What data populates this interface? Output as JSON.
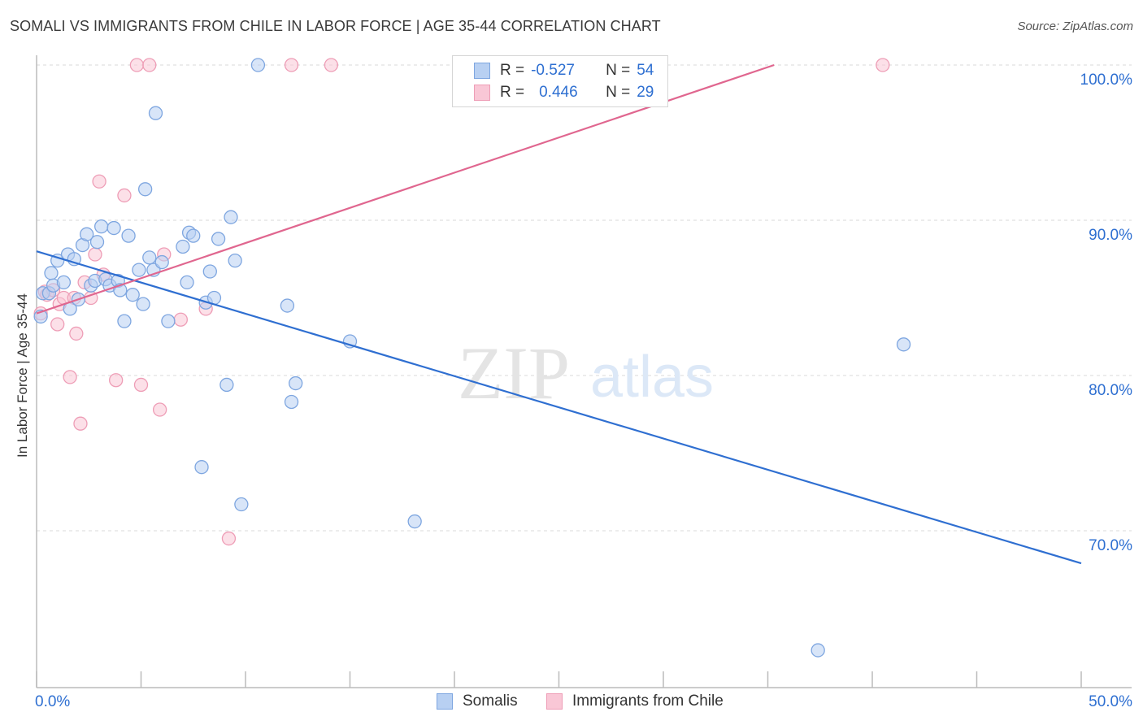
{
  "header": {
    "title": "SOMALI VS IMMIGRANTS FROM CHILE IN LABOR FORCE | AGE 35-44 CORRELATION CHART",
    "source": "Source: ZipAtlas.com"
  },
  "watermark": {
    "zip": "ZIP",
    "atlas": "atlas"
  },
  "legend": {
    "somali": {
      "r_label": "R =",
      "r_value": "-0.527",
      "n_label": "N =",
      "n_value": "54"
    },
    "chile": {
      "r_label": "R =",
      "r_value": "0.446",
      "n_label": "N =",
      "n_value": "29"
    }
  },
  "colors": {
    "somali_fill": "#b8d0f2",
    "somali_stroke": "#7ea6e0",
    "somali_line": "#2f6fd1",
    "chile_fill": "#f9c7d6",
    "chile_stroke": "#ee9db6",
    "chile_line": "#e0668f",
    "axis_text": "#2e6fd1",
    "grid": "#d9d9d9"
  },
  "chart_data": {
    "type": "scatter",
    "title": "SOMALI VS IMMIGRANTS FROM CHILE IN LABOR FORCE | AGE 35-44 CORRELATION CHART",
    "xlabel": "",
    "ylabel": "In Labor Force | Age 35-44",
    "xlim": [
      0,
      50
    ],
    "ylim": [
      61,
      101
    ],
    "x_tick_labels": [
      "0.0%",
      "50.0%"
    ],
    "y_ticks": [
      70,
      80,
      90,
      100
    ],
    "y_tick_labels": [
      "70.0%",
      "80.0%",
      "90.0%",
      "100.0%"
    ],
    "series": [
      {
        "name": "Somalis",
        "r": -0.527,
        "n": 54,
        "trend": {
          "x": [
            0,
            50
          ],
          "y": [
            88.0,
            67.9
          ]
        },
        "points": [
          {
            "x": 0.2,
            "y": 83.8
          },
          {
            "x": 0.3,
            "y": 85.3
          },
          {
            "x": 0.6,
            "y": 85.3
          },
          {
            "x": 0.7,
            "y": 86.6
          },
          {
            "x": 0.8,
            "y": 85.8
          },
          {
            "x": 1.0,
            "y": 87.4
          },
          {
            "x": 1.3,
            "y": 86.0
          },
          {
            "x": 1.5,
            "y": 87.8
          },
          {
            "x": 1.6,
            "y": 84.3
          },
          {
            "x": 1.8,
            "y": 87.5
          },
          {
            "x": 2.0,
            "y": 84.9
          },
          {
            "x": 2.2,
            "y": 88.4
          },
          {
            "x": 2.4,
            "y": 89.1
          },
          {
            "x": 2.6,
            "y": 85.8
          },
          {
            "x": 2.8,
            "y": 86.1
          },
          {
            "x": 2.9,
            "y": 88.6
          },
          {
            "x": 3.1,
            "y": 89.6
          },
          {
            "x": 3.3,
            "y": 86.2
          },
          {
            "x": 3.5,
            "y": 85.8
          },
          {
            "x": 3.7,
            "y": 89.5
          },
          {
            "x": 3.9,
            "y": 86.1
          },
          {
            "x": 4.0,
            "y": 85.5
          },
          {
            "x": 4.2,
            "y": 83.5
          },
          {
            "x": 4.4,
            "y": 89.0
          },
          {
            "x": 4.6,
            "y": 85.2
          },
          {
            "x": 4.9,
            "y": 86.8
          },
          {
            "x": 5.1,
            "y": 84.6
          },
          {
            "x": 5.2,
            "y": 92.0
          },
          {
            "x": 5.4,
            "y": 87.6
          },
          {
            "x": 5.6,
            "y": 86.8
          },
          {
            "x": 5.7,
            "y": 96.9
          },
          {
            "x": 6.0,
            "y": 87.3
          },
          {
            "x": 6.3,
            "y": 83.5
          },
          {
            "x": 7.0,
            "y": 88.3
          },
          {
            "x": 7.2,
            "y": 86.0
          },
          {
            "x": 7.3,
            "y": 89.2
          },
          {
            "x": 7.5,
            "y": 89.0
          },
          {
            "x": 7.9,
            "y": 74.1
          },
          {
            "x": 8.1,
            "y": 84.7
          },
          {
            "x": 8.3,
            "y": 86.7
          },
          {
            "x": 8.5,
            "y": 85.0
          },
          {
            "x": 8.7,
            "y": 88.8
          },
          {
            "x": 9.1,
            "y": 79.4
          },
          {
            "x": 9.3,
            "y": 90.2
          },
          {
            "x": 9.5,
            "y": 87.4
          },
          {
            "x": 9.8,
            "y": 71.7
          },
          {
            "x": 10.6,
            "y": 100.0
          },
          {
            "x": 12.0,
            "y": 84.5
          },
          {
            "x": 12.2,
            "y": 78.3
          },
          {
            "x": 12.4,
            "y": 79.5
          },
          {
            "x": 15.0,
            "y": 82.2
          },
          {
            "x": 18.1,
            "y": 70.6
          },
          {
            "x": 37.4,
            "y": 62.3
          },
          {
            "x": 41.5,
            "y": 82.0
          }
        ]
      },
      {
        "name": "Immigrants from Chile",
        "r": 0.446,
        "n": 29,
        "trend": {
          "x": [
            0,
            35.3
          ],
          "y": [
            84.0,
            100.0
          ]
        },
        "points": [
          {
            "x": 0.2,
            "y": 84.0
          },
          {
            "x": 0.4,
            "y": 85.4
          },
          {
            "x": 0.5,
            "y": 85.2
          },
          {
            "x": 0.8,
            "y": 85.5
          },
          {
            "x": 1.0,
            "y": 83.3
          },
          {
            "x": 1.1,
            "y": 84.6
          },
          {
            "x": 1.3,
            "y": 85.0
          },
          {
            "x": 1.6,
            "y": 79.9
          },
          {
            "x": 1.8,
            "y": 85.0
          },
          {
            "x": 1.9,
            "y": 82.7
          },
          {
            "x": 2.1,
            "y": 76.9
          },
          {
            "x": 2.3,
            "y": 86.0
          },
          {
            "x": 2.6,
            "y": 85.0
          },
          {
            "x": 2.8,
            "y": 87.8
          },
          {
            "x": 3.0,
            "y": 92.5
          },
          {
            "x": 3.2,
            "y": 86.5
          },
          {
            "x": 3.8,
            "y": 79.7
          },
          {
            "x": 4.2,
            "y": 91.6
          },
          {
            "x": 4.8,
            "y": 100.0
          },
          {
            "x": 5.0,
            "y": 79.4
          },
          {
            "x": 5.4,
            "y": 100.0
          },
          {
            "x": 5.9,
            "y": 77.8
          },
          {
            "x": 6.1,
            "y": 87.8
          },
          {
            "x": 6.9,
            "y": 83.6
          },
          {
            "x": 8.1,
            "y": 84.3
          },
          {
            "x": 9.2,
            "y": 69.5
          },
          {
            "x": 12.2,
            "y": 100.0
          },
          {
            "x": 14.1,
            "y": 100.0
          },
          {
            "x": 40.5,
            "y": 100.0
          }
        ]
      }
    ]
  }
}
